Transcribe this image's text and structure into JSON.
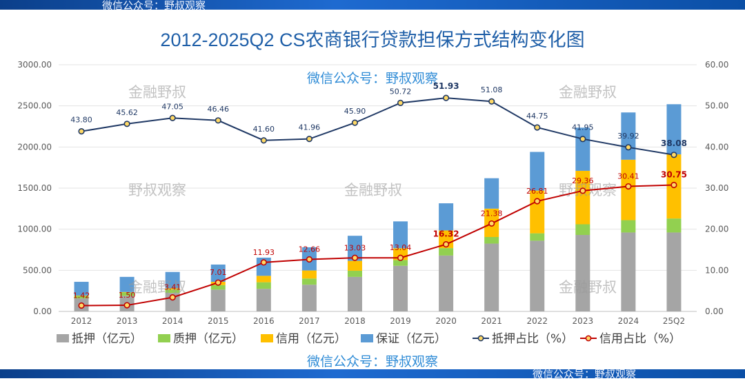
{
  "watermarks": {
    "top": "微信公众号：野叔观察",
    "bottom": "微信公众号：野叔观察",
    "blue_1": "微信公众号：野叔观察",
    "blue_2": "微信公众号：野叔观察",
    "grey": [
      "金融野叔",
      "金融野叔",
      "野叔观察",
      "金融野叔",
      "野叔观察",
      "金融野叔",
      "金融野叔"
    ]
  },
  "colors": {
    "mortgage": "#a5a5a5",
    "pledge": "#92d050",
    "credit": "#ffc000",
    "guarantee": "#5b9bd5",
    "mortgage_ratio_line": "#1f3864",
    "credit_ratio_line": "#c00000",
    "title": "#1f5fa8",
    "brand_bar": "#1e6ad0"
  },
  "chart_data": {
    "type": "bar",
    "title": "2012-2025Q2 CS农商银行贷款担保方式结构变化图",
    "categories": [
      "2012",
      "2013",
      "2014",
      "2015",
      "2016",
      "2017",
      "2018",
      "2019",
      "2020",
      "2021",
      "2022",
      "2023",
      "2024",
      "25Q2"
    ],
    "ylim": [
      0,
      3000
    ],
    "y_ticks": [
      "0.00",
      "500.00",
      "1000.00",
      "1500.00",
      "2000.00",
      "2500.00",
      "3000.00"
    ],
    "y2lim": [
      0,
      60
    ],
    "y2_ticks": [
      "0.00",
      "10.00",
      "20.00",
      "30.00",
      "40.00",
      "50.00",
      "60.00"
    ],
    "stacked": true,
    "series": [
      {
        "name": "抵押（亿元）",
        "type": "bar",
        "values": [
          158,
          190,
          225,
          265,
          275,
          325,
          420,
          555,
          680,
          825,
          860,
          930,
          960,
          960
        ]
      },
      {
        "name": "质押（亿元）",
        "type": "bar",
        "values": [
          30,
          40,
          40,
          55,
          80,
          75,
          75,
          70,
          90,
          80,
          90,
          130,
          150,
          170
        ]
      },
      {
        "name": "信用（亿元）",
        "type": "bar",
        "values": [
          5,
          6,
          16,
          40,
          78,
          98,
          120,
          143,
          215,
          345,
          520,
          650,
          735,
          780
        ]
      },
      {
        "name": "保证（亿元）",
        "type": "bar",
        "values": [
          167,
          184,
          199,
          210,
          221,
          282,
          305,
          327,
          330,
          370,
          470,
          525,
          575,
          610
        ]
      },
      {
        "name": "抵押占比（%）",
        "type": "line",
        "axis": "right",
        "values": [
          43.8,
          45.62,
          47.05,
          46.46,
          41.6,
          41.96,
          45.9,
          50.72,
          51.93,
          51.08,
          44.75,
          41.95,
          39.92,
          38.08
        ],
        "labels": [
          "43.80",
          "45.62",
          "47.05",
          "46.46",
          "41.60",
          "41.96",
          "45.90",
          "50.72",
          "51.93",
          "51.08",
          "44.75",
          "41.95",
          "39.92",
          "38.08"
        ]
      },
      {
        "name": "信用占比（%）",
        "type": "line",
        "axis": "right",
        "values": [
          1.42,
          1.5,
          3.41,
          7.01,
          11.93,
          12.66,
          13.03,
          13.04,
          16.32,
          21.38,
          26.81,
          29.36,
          30.41,
          30.75
        ],
        "labels": [
          "1.42",
          "1.50",
          "3.41",
          "7.01",
          "11.93",
          "12.66",
          "13.03",
          "13.04",
          "16.32",
          "21.38",
          "26.81",
          "29.36",
          "30.41",
          "30.75"
        ]
      }
    ],
    "legend": [
      "抵押（亿元）",
      "质押（亿元）",
      "信用（亿元）",
      "保证（亿元）",
      "抵押占比（%）",
      "信用占比（%）"
    ],
    "legend_position": "bottom",
    "grid": true
  }
}
